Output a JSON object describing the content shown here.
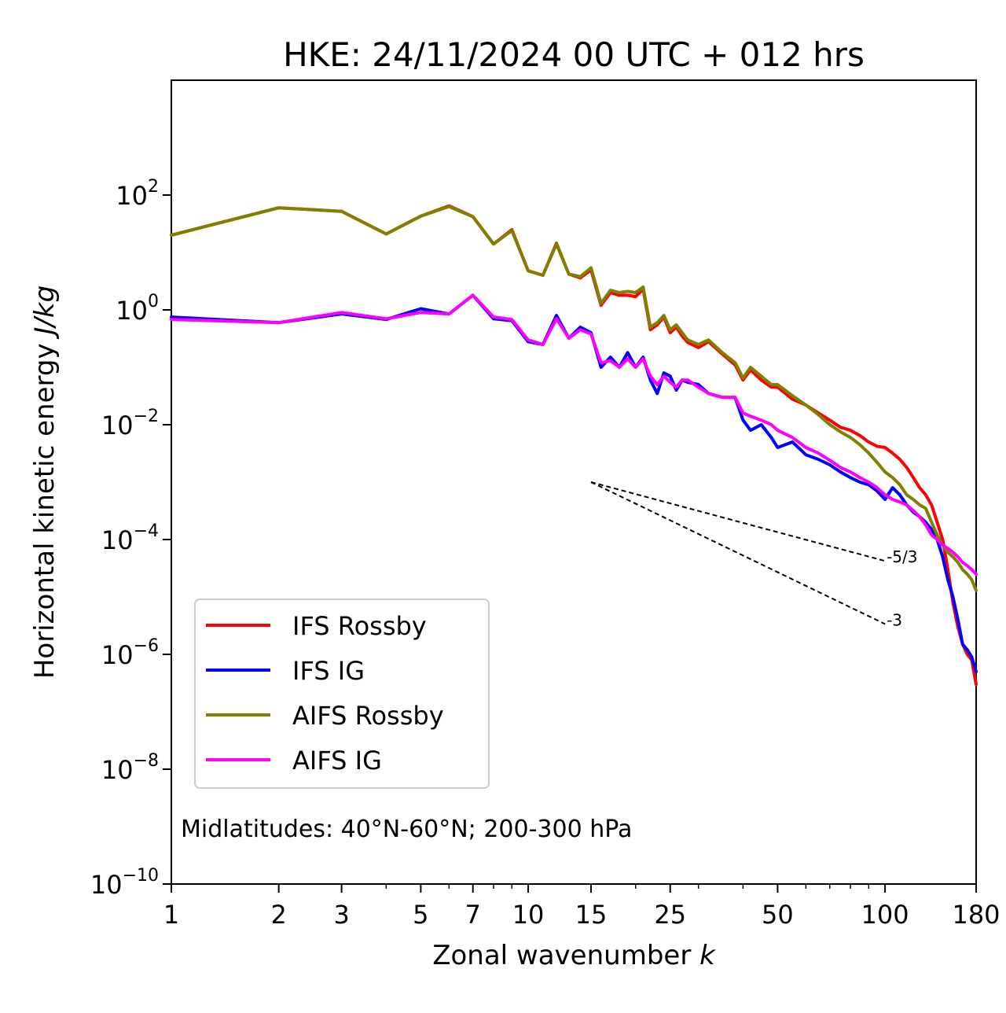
{
  "chart_data": {
    "type": "line",
    "title": "HKE: 24/11/2024 00 UTC + 012 hrs",
    "xlabel_text": "Zonal wavenumber ",
    "xlabel_symbol": "k",
    "ylabel_text": "Horizontal kinetic energy ",
    "ylabel_unit": "J/kg",
    "x_scale": "log",
    "y_scale": "log",
    "xlim": [
      1,
      180
    ],
    "ylim": [
      1e-10,
      10000.0
    ],
    "x_ticks": [
      1,
      2,
      3,
      5,
      7,
      10,
      15,
      25,
      50,
      100,
      180
    ],
    "x_tick_labels": [
      "1",
      "2",
      "3",
      "5",
      "7",
      "10",
      "15",
      "25",
      "50",
      "100",
      "180"
    ],
    "y_ticks": [
      -10,
      -8,
      -6,
      -4,
      -2,
      0,
      2
    ],
    "y_tick_labels": [
      {
        "base": "10",
        "exp": "−10"
      },
      {
        "base": "10",
        "exp": "−8"
      },
      {
        "base": "10",
        "exp": "−6"
      },
      {
        "base": "10",
        "exp": "−4"
      },
      {
        "base": "10",
        "exp": "−2"
      },
      {
        "base": "10",
        "exp": "0"
      },
      {
        "base": "10",
        "exp": "2"
      }
    ],
    "grid": false,
    "legend_position": "lower-left",
    "annotation": "Midlatitudes: 40°N-60°N; 200-300 hPa",
    "reference_slopes": [
      {
        "label": "-5/3",
        "slope": -1.6667,
        "x0": 15,
        "y0": 0.001,
        "x1": 100
      },
      {
        "label": "-3",
        "slope": -3,
        "x0": 15,
        "y0": 0.001,
        "x1": 100
      }
    ],
    "series": [
      {
        "name": "IFS Rossby",
        "color": "#ff0000",
        "x": [
          1,
          2,
          3,
          4,
          5,
          6,
          7,
          8,
          9,
          10,
          11,
          12,
          13,
          14,
          15,
          16,
          17,
          18,
          19,
          20,
          21,
          22,
          23,
          24,
          25,
          26,
          27,
          28,
          30,
          32,
          35,
          38,
          40,
          42,
          45,
          48,
          50,
          55,
          60,
          65,
          70,
          75,
          80,
          85,
          90,
          95,
          100,
          105,
          110,
          115,
          120,
          125,
          130,
          135,
          140,
          145,
          150,
          155,
          160,
          165,
          170,
          175,
          180
        ],
        "y": [
          20,
          60,
          52,
          21,
          43,
          65,
          42,
          14,
          25,
          4.8,
          4.0,
          14.5,
          4.2,
          3.6,
          5.0,
          1.2,
          2.0,
          1.8,
          1.8,
          1.7,
          2.3,
          0.45,
          0.55,
          0.75,
          0.4,
          0.5,
          0.35,
          0.27,
          0.22,
          0.28,
          0.17,
          0.11,
          0.06,
          0.09,
          0.06,
          0.045,
          0.045,
          0.028,
          0.022,
          0.016,
          0.012,
          0.009,
          0.008,
          0.0065,
          0.005,
          0.0042,
          0.004,
          0.0032,
          0.0025,
          0.0018,
          0.0012,
          0.0008,
          0.0006,
          0.0004,
          0.0002,
          0.0001,
          3e-05,
          8e-06,
          3e-06,
          1.5e-06,
          1e-06,
          8e-07,
          3e-07
        ]
      },
      {
        "name": "IFS IG",
        "color": "#0000ff",
        "x": [
          1,
          2,
          3,
          4,
          5,
          6,
          7,
          8,
          9,
          10,
          11,
          12,
          13,
          14,
          15,
          16,
          17,
          18,
          19,
          20,
          21,
          22,
          23,
          24,
          25,
          26,
          27,
          28,
          30,
          32,
          35,
          38,
          40,
          42,
          45,
          48,
          50,
          55,
          60,
          65,
          70,
          75,
          80,
          85,
          90,
          95,
          100,
          105,
          110,
          115,
          120,
          125,
          130,
          135,
          140,
          145,
          150,
          155,
          160,
          165,
          170,
          175,
          180
        ],
        "y": [
          0.75,
          0.6,
          0.85,
          0.68,
          1.05,
          0.85,
          1.8,
          0.7,
          0.65,
          0.28,
          0.25,
          0.8,
          0.32,
          0.5,
          0.4,
          0.1,
          0.15,
          0.1,
          0.18,
          0.1,
          0.15,
          0.06,
          0.035,
          0.08,
          0.07,
          0.04,
          0.06,
          0.055,
          0.05,
          0.035,
          0.03,
          0.03,
          0.012,
          0.008,
          0.01,
          0.006,
          0.004,
          0.005,
          0.003,
          0.0025,
          0.002,
          0.0015,
          0.0012,
          0.001,
          0.0009,
          0.0007,
          0.0005,
          0.0008,
          0.0006,
          0.0004,
          0.0003,
          0.00025,
          0.0002,
          0.00015,
          0.0001,
          5e-05,
          2e-05,
          1e-05,
          4e-06,
          1.5e-06,
          1.2e-06,
          9e-07,
          5e-07
        ]
      },
      {
        "name": "AIFS Rossby",
        "color": "#808000",
        "x": [
          1,
          2,
          3,
          4,
          5,
          6,
          7,
          8,
          9,
          10,
          11,
          12,
          13,
          14,
          15,
          16,
          17,
          18,
          19,
          20,
          21,
          22,
          23,
          24,
          25,
          26,
          27,
          28,
          30,
          32,
          35,
          38,
          40,
          42,
          45,
          48,
          50,
          55,
          60,
          65,
          70,
          75,
          80,
          85,
          90,
          95,
          100,
          105,
          110,
          115,
          120,
          125,
          130,
          135,
          140,
          145,
          150,
          155,
          160,
          165,
          170,
          175,
          180
        ],
        "y": [
          20,
          60,
          52,
          21,
          43,
          63,
          42,
          14,
          24,
          4.8,
          4.0,
          14.0,
          4.2,
          3.8,
          5.4,
          1.3,
          2.2,
          2.0,
          2.1,
          2.0,
          2.5,
          0.5,
          0.6,
          0.8,
          0.45,
          0.55,
          0.4,
          0.3,
          0.25,
          0.3,
          0.18,
          0.12,
          0.065,
          0.1,
          0.07,
          0.05,
          0.05,
          0.032,
          0.022,
          0.015,
          0.01,
          0.0075,
          0.006,
          0.0045,
          0.0032,
          0.0022,
          0.0015,
          0.0012,
          0.0009,
          0.0006,
          0.0005,
          0.0004,
          0.00035,
          0.0002,
          0.00012,
          8e-05,
          6e-05,
          5e-05,
          4e-05,
          3e-05,
          2.5e-05,
          2e-05,
          1.3e-05
        ]
      },
      {
        "name": "AIFS IG",
        "color": "#ff00ff",
        "x": [
          1,
          2,
          3,
          4,
          5,
          6,
          7,
          8,
          9,
          10,
          11,
          12,
          13,
          14,
          15,
          16,
          17,
          18,
          19,
          20,
          21,
          22,
          23,
          24,
          25,
          26,
          27,
          28,
          30,
          32,
          35,
          38,
          40,
          42,
          45,
          48,
          50,
          55,
          60,
          65,
          70,
          75,
          80,
          85,
          90,
          95,
          100,
          105,
          110,
          115,
          120,
          125,
          130,
          135,
          140,
          145,
          150,
          155,
          160,
          165,
          170,
          175,
          180
        ],
        "y": [
          0.68,
          0.6,
          0.9,
          0.7,
          0.9,
          0.85,
          1.8,
          0.75,
          0.68,
          0.3,
          0.25,
          0.7,
          0.32,
          0.45,
          0.38,
          0.12,
          0.13,
          0.1,
          0.14,
          0.1,
          0.14,
          0.07,
          0.05,
          0.07,
          0.055,
          0.045,
          0.06,
          0.06,
          0.045,
          0.035,
          0.03,
          0.03,
          0.016,
          0.014,
          0.012,
          0.01,
          0.008,
          0.006,
          0.004,
          0.0032,
          0.0024,
          0.0018,
          0.0015,
          0.0012,
          0.001,
          0.0008,
          0.0006,
          0.0005,
          0.00045,
          0.0004,
          0.00032,
          0.00025,
          0.00018,
          0.00012,
          0.0001,
          8e-05,
          7e-05,
          6e-05,
          5e-05,
          4e-05,
          3.5e-05,
          3e-05,
          2.5e-05
        ]
      }
    ]
  }
}
